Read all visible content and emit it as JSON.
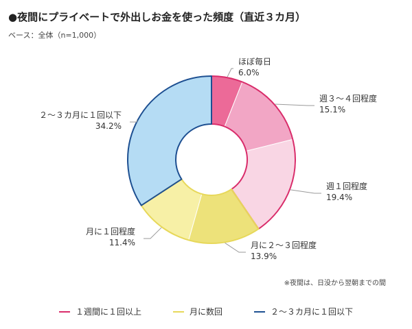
{
  "title": "●夜間にプライベートで外出しお金を使った頻度（直近３カ月）",
  "base_note": "ベース：全体（n=1,000）",
  "footnote": "※夜間は、日没から翌朝までの間",
  "chart_data": {
    "type": "pie",
    "subtype": "donut",
    "unit": "%",
    "categories": [
      "ほぼ毎日",
      "週３～４回程度",
      "週１回程度",
      "月に２～３回程度",
      "月に１回程度",
      "２～３カ月に１回以下"
    ],
    "values": [
      6.0,
      15.1,
      19.4,
      13.9,
      11.4,
      34.2
    ],
    "value_labels": [
      "6.0%",
      "15.1%",
      "19.4%",
      "13.9%",
      "11.4%",
      "34.2%"
    ],
    "fill_colors": [
      "#ec6a98",
      "#f2a6c5",
      "#f9d6e4",
      "#ede27a",
      "#f7f0a6",
      "#b5dcf4"
    ],
    "group_of_slice": [
      0,
      0,
      0,
      1,
      1,
      2
    ],
    "legend": [
      {
        "label": "１週間に１回以上",
        "color": "#d92c6a"
      },
      {
        "label": "月に数回",
        "color": "#e7d85a"
      },
      {
        "label": "２～３カ月に１回以下",
        "color": "#1d4f91"
      }
    ],
    "legend_position": "bottom"
  }
}
